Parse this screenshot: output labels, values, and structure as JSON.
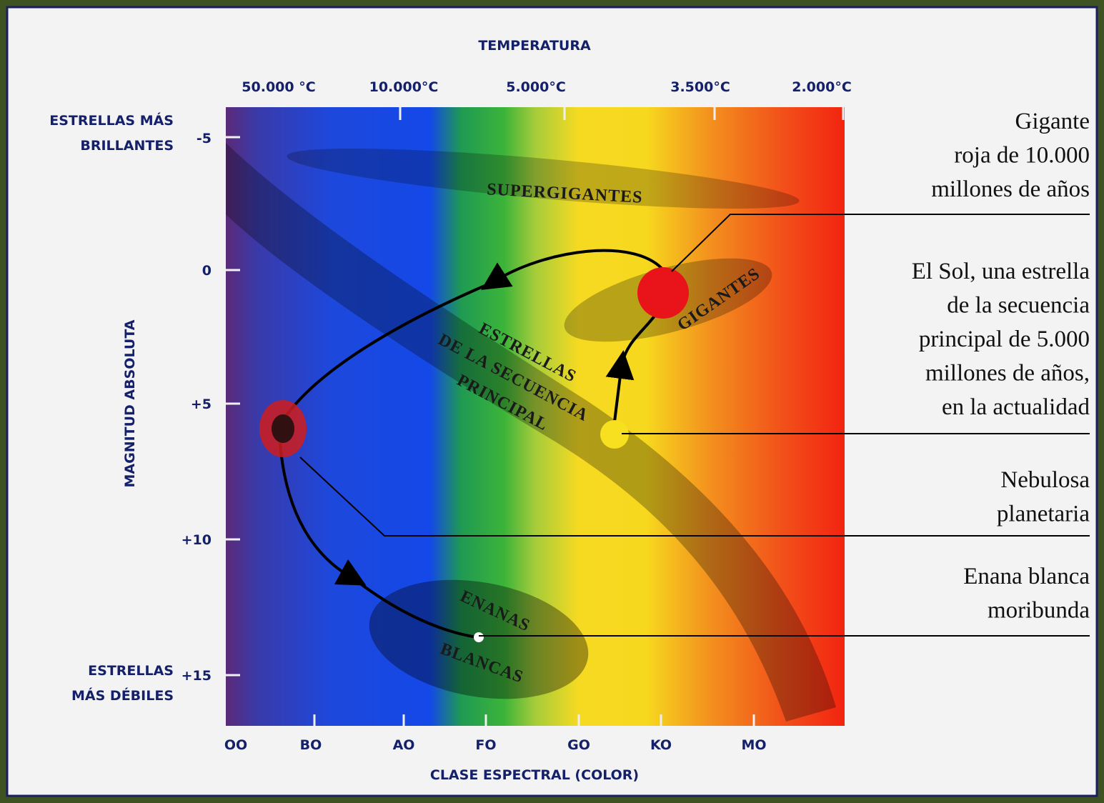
{
  "top_axis": {
    "title": "TEMPERATURA",
    "labels": [
      "50.000 °C",
      "10.000°C",
      "5.000°C",
      "3.500°C",
      "2.000°C"
    ]
  },
  "left_axis": {
    "title": "MAGNITUD ABSOLUTA",
    "labels": [
      "-5",
      "0",
      "+5",
      "+10",
      "+15"
    ],
    "top_note": [
      "ESTRELLAS MÁS",
      "BRILLANTES"
    ],
    "bottom_note": [
      "ESTRELLAS",
      "MÁS DÉBILES"
    ]
  },
  "bottom_axis": {
    "title": "CLASE ESPECTRAL (COLOR)",
    "labels": [
      "OO",
      "BO",
      "AO",
      "FO",
      "GO",
      "KO",
      "MO"
    ]
  },
  "regions": {
    "supergiants": "SUPERGIGANTES",
    "giants": "GIGANTES",
    "main_sequence": [
      "ESTRELLAS",
      "DE LA SECUENCIA",
      "PRINCIPAL"
    ],
    "white_dwarfs": [
      "ENANAS",
      "BLANCAS"
    ]
  },
  "callouts": [
    {
      "lines": [
        "Gigante",
        "roja de 10.000",
        "millones de años"
      ]
    },
    {
      "lines": [
        "El Sol, una estrella",
        "de la secuencia",
        "principal de 5.000",
        "millones de años,",
        "en la actualidad"
      ]
    },
    {
      "lines": [
        "Nebulosa",
        "planetaria"
      ]
    },
    {
      "lines": [
        "Enana blanca",
        "moribunda"
      ]
    }
  ]
}
